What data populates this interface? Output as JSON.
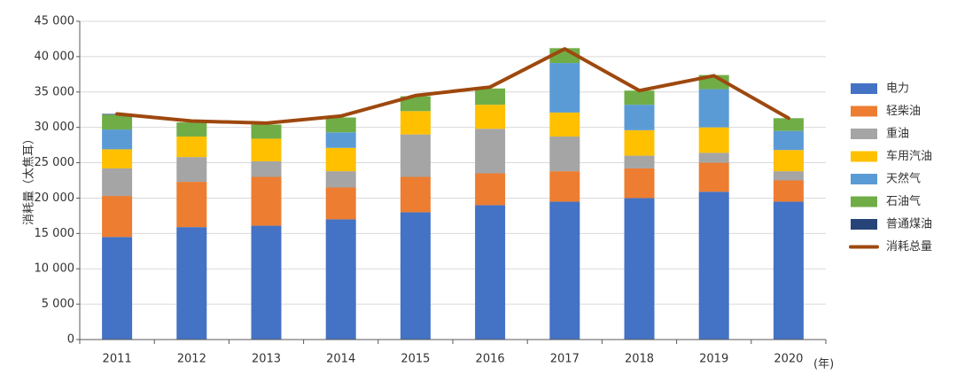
{
  "chart_data": {
    "type": "bar",
    "stacked": true,
    "categories": [
      "2011",
      "2012",
      "2013",
      "2014",
      "2015",
      "2016",
      "2017",
      "2018",
      "2019",
      "2020"
    ],
    "x_unit": "(年)",
    "ylabel": "消耗量（太焦耳）",
    "ylim": [
      0,
      45000
    ],
    "yticks": [
      0,
      5000,
      10000,
      15000,
      20000,
      25000,
      30000,
      35000,
      40000,
      45000
    ],
    "ytick_labels": [
      "0",
      "5 000",
      "10 000",
      "15 000",
      "20 000",
      "25 000",
      "30 000",
      "35 000",
      "40 000",
      "45 000"
    ],
    "grid": "horizontal",
    "legend": "right",
    "series": [
      {
        "name": "电力",
        "color": "#4472C4",
        "values": [
          14500,
          15900,
          16100,
          17000,
          18000,
          19000,
          19500,
          20000,
          20900,
          19500
        ]
      },
      {
        "name": "轻柴油",
        "color": "#ED7D31",
        "values": [
          5800,
          6400,
          6900,
          4500,
          5000,
          4500,
          4300,
          4200,
          4100,
          3000
        ]
      },
      {
        "name": "重油",
        "color": "#A5A5A5",
        "values": [
          3900,
          3500,
          2200,
          2300,
          6000,
          6300,
          4900,
          1800,
          1400,
          1300
        ]
      },
      {
        "name": "车用汽油",
        "color": "#FFC000",
        "values": [
          2700,
          2900,
          3200,
          3300,
          3300,
          3400,
          3400,
          3600,
          3600,
          3000
        ]
      },
      {
        "name": "天然气",
        "color": "#5B9BD5",
        "values": [
          2800,
          0,
          0,
          2200,
          0,
          0,
          7000,
          3600,
          5400,
          2700
        ]
      },
      {
        "name": "石油气",
        "color": "#70AD47",
        "values": [
          2100,
          2000,
          2000,
          2100,
          2100,
          2300,
          2100,
          2000,
          2000,
          1800
        ]
      },
      {
        "name": "普通煤油",
        "color": "#264478",
        "values": [
          100,
          0,
          0,
          0,
          0,
          0,
          0,
          0,
          0,
          0
        ]
      }
    ],
    "line": {
      "name": "消耗总量",
      "color": "#9E480E",
      "values": [
        31900,
        30900,
        30600,
        31600,
        34500,
        35700,
        41100,
        35200,
        37300,
        31300
      ]
    }
  }
}
